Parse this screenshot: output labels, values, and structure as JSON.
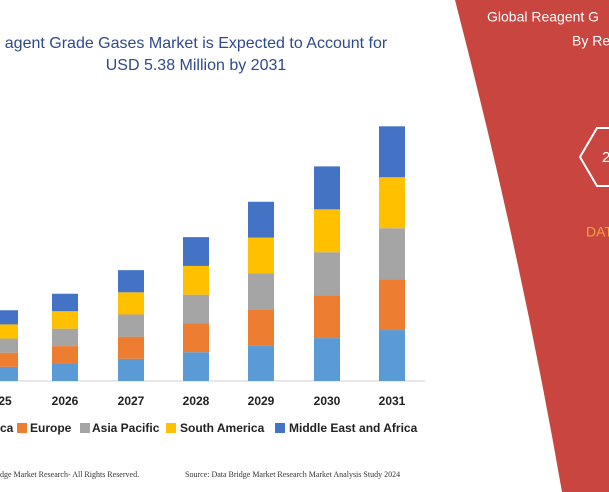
{
  "chart_data": {
    "type": "stacked_bar",
    "title": "agent Grade Gases Market is Expected to Account for",
    "subtitle": "USD 5.38 Million by 2031",
    "categories": [
      "25",
      "2026",
      "2027",
      "2028",
      "2029",
      "2030",
      "2031"
    ],
    "series": [
      {
        "name": "ca",
        "color": "#5b9bd5",
        "values": [
          0.3,
          0.37,
          0.47,
          0.61,
          0.76,
          0.91,
          1.08
        ]
      },
      {
        "name": "Europe",
        "color": "#ed7d31",
        "values": [
          0.3,
          0.37,
          0.47,
          0.61,
          0.76,
          0.91,
          1.08
        ]
      },
      {
        "name": "Asia Pacific",
        "color": "#a5a5a5",
        "values": [
          0.3,
          0.37,
          0.47,
          0.61,
          0.76,
          0.91,
          1.08
        ]
      },
      {
        "name": "South America",
        "color": "#ffc000",
        "values": [
          0.3,
          0.37,
          0.47,
          0.61,
          0.76,
          0.91,
          1.08
        ]
      },
      {
        "name": "Middle East and Africa",
        "color": "#4472c4",
        "values": [
          0.3,
          0.37,
          0.47,
          0.61,
          0.76,
          0.91,
          1.08
        ]
      }
    ],
    "ylim": [
      0,
      6
    ]
  },
  "footer": {
    "left": "dge Market Research- All Rights Reserved.",
    "right": "Source: Data Bridge Market Research  Market Analysis Study 2024"
  },
  "panel": {
    "heading_1": "Global Reagent G",
    "heading_2": "By Re",
    "badge": "2",
    "brand": "DAT"
  }
}
